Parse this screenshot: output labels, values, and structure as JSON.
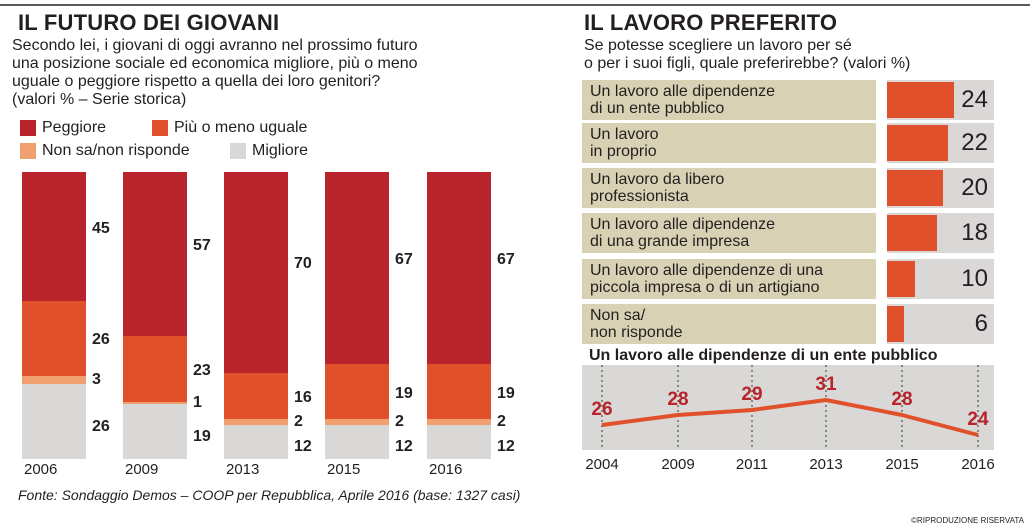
{
  "left": {
    "title": "IL FUTURO DEI GIOVANI",
    "subtitle_lines": [
      "Secondo lei,  i giovani di oggi avranno nel prossimo futuro",
      "una posizione sociale ed economica migliore, più o meno",
      "uguale o peggiore rispetto a quella dei loro genitori?",
      "(valori % – Serie storica)"
    ],
    "legend": [
      "Peggiore",
      "Più o meno uguale",
      "Non sa/non risponde",
      "Migliore"
    ]
  },
  "right": {
    "title": "IL LAVORO PREFERITO",
    "subtitle_lines": [
      "Se potesse scegliere un lavoro per sé",
      "o per i suoi figli, quale preferirebbe? (valori %)"
    ]
  },
  "line_title": "Un lavoro alle dipendenze di un ente pubblico",
  "source": "Fonte: Sondaggio Demos – COOP per Repubblica, Aprile 2016 (base: 1327 casi)",
  "copyright": "©RIPRODUZIONE RISERVATA",
  "colors": {
    "peggiore": "#b8232c",
    "uguale": "#e0512b",
    "nonsa": "#f0a070",
    "migliore": "#d9d8d6",
    "job_label_bg": "#d8d1b4",
    "line": "#e0512b",
    "line_label": "#b8232c"
  },
  "chart_data": [
    {
      "type": "bar",
      "stacked": true,
      "title": "IL FUTURO DEI GIOVANI",
      "categories": [
        "2006",
        "2009",
        "2013",
        "2015",
        "2016"
      ],
      "series": [
        {
          "name": "Migliore",
          "values": [
            26,
            19,
            12,
            12,
            12
          ]
        },
        {
          "name": "Non sa/non risponde",
          "values": [
            3,
            1,
            2,
            2,
            2
          ]
        },
        {
          "name": "Più o meno uguale",
          "values": [
            26,
            23,
            16,
            19,
            19
          ]
        },
        {
          "name": "Peggiore",
          "values": [
            45,
            57,
            70,
            67,
            67
          ]
        }
      ],
      "ylim": [
        0,
        100
      ],
      "legend": "top",
      "grid": false
    },
    {
      "type": "bar",
      "orientation": "horizontal",
      "title": "IL LAVORO PREFERITO",
      "categories": [
        [
          "Un lavoro alle dipendenze",
          "di un ente pubblico"
        ],
        [
          "Un lavoro",
          "in proprio"
        ],
        [
          "Un lavoro  da libero",
          "professionista"
        ],
        [
          "Un lavoro alle dipendenze",
          "di una grande impresa"
        ],
        [
          "Un lavoro alle dipendenze di una",
          "piccola impresa o di un artigiano"
        ],
        [
          "Non sa/",
          "non risponde"
        ]
      ],
      "values": [
        24,
        22,
        20,
        18,
        10,
        6
      ],
      "grid": false
    },
    {
      "type": "line",
      "title": "Un lavoro alle dipendenze di un ente pubblico",
      "x": [
        "2004",
        "2009",
        "2011",
        "2013",
        "2015",
        "2016"
      ],
      "series": [
        {
          "values": [
            26,
            28,
            29,
            31,
            28,
            24
          ]
        }
      ],
      "grid": false
    }
  ]
}
